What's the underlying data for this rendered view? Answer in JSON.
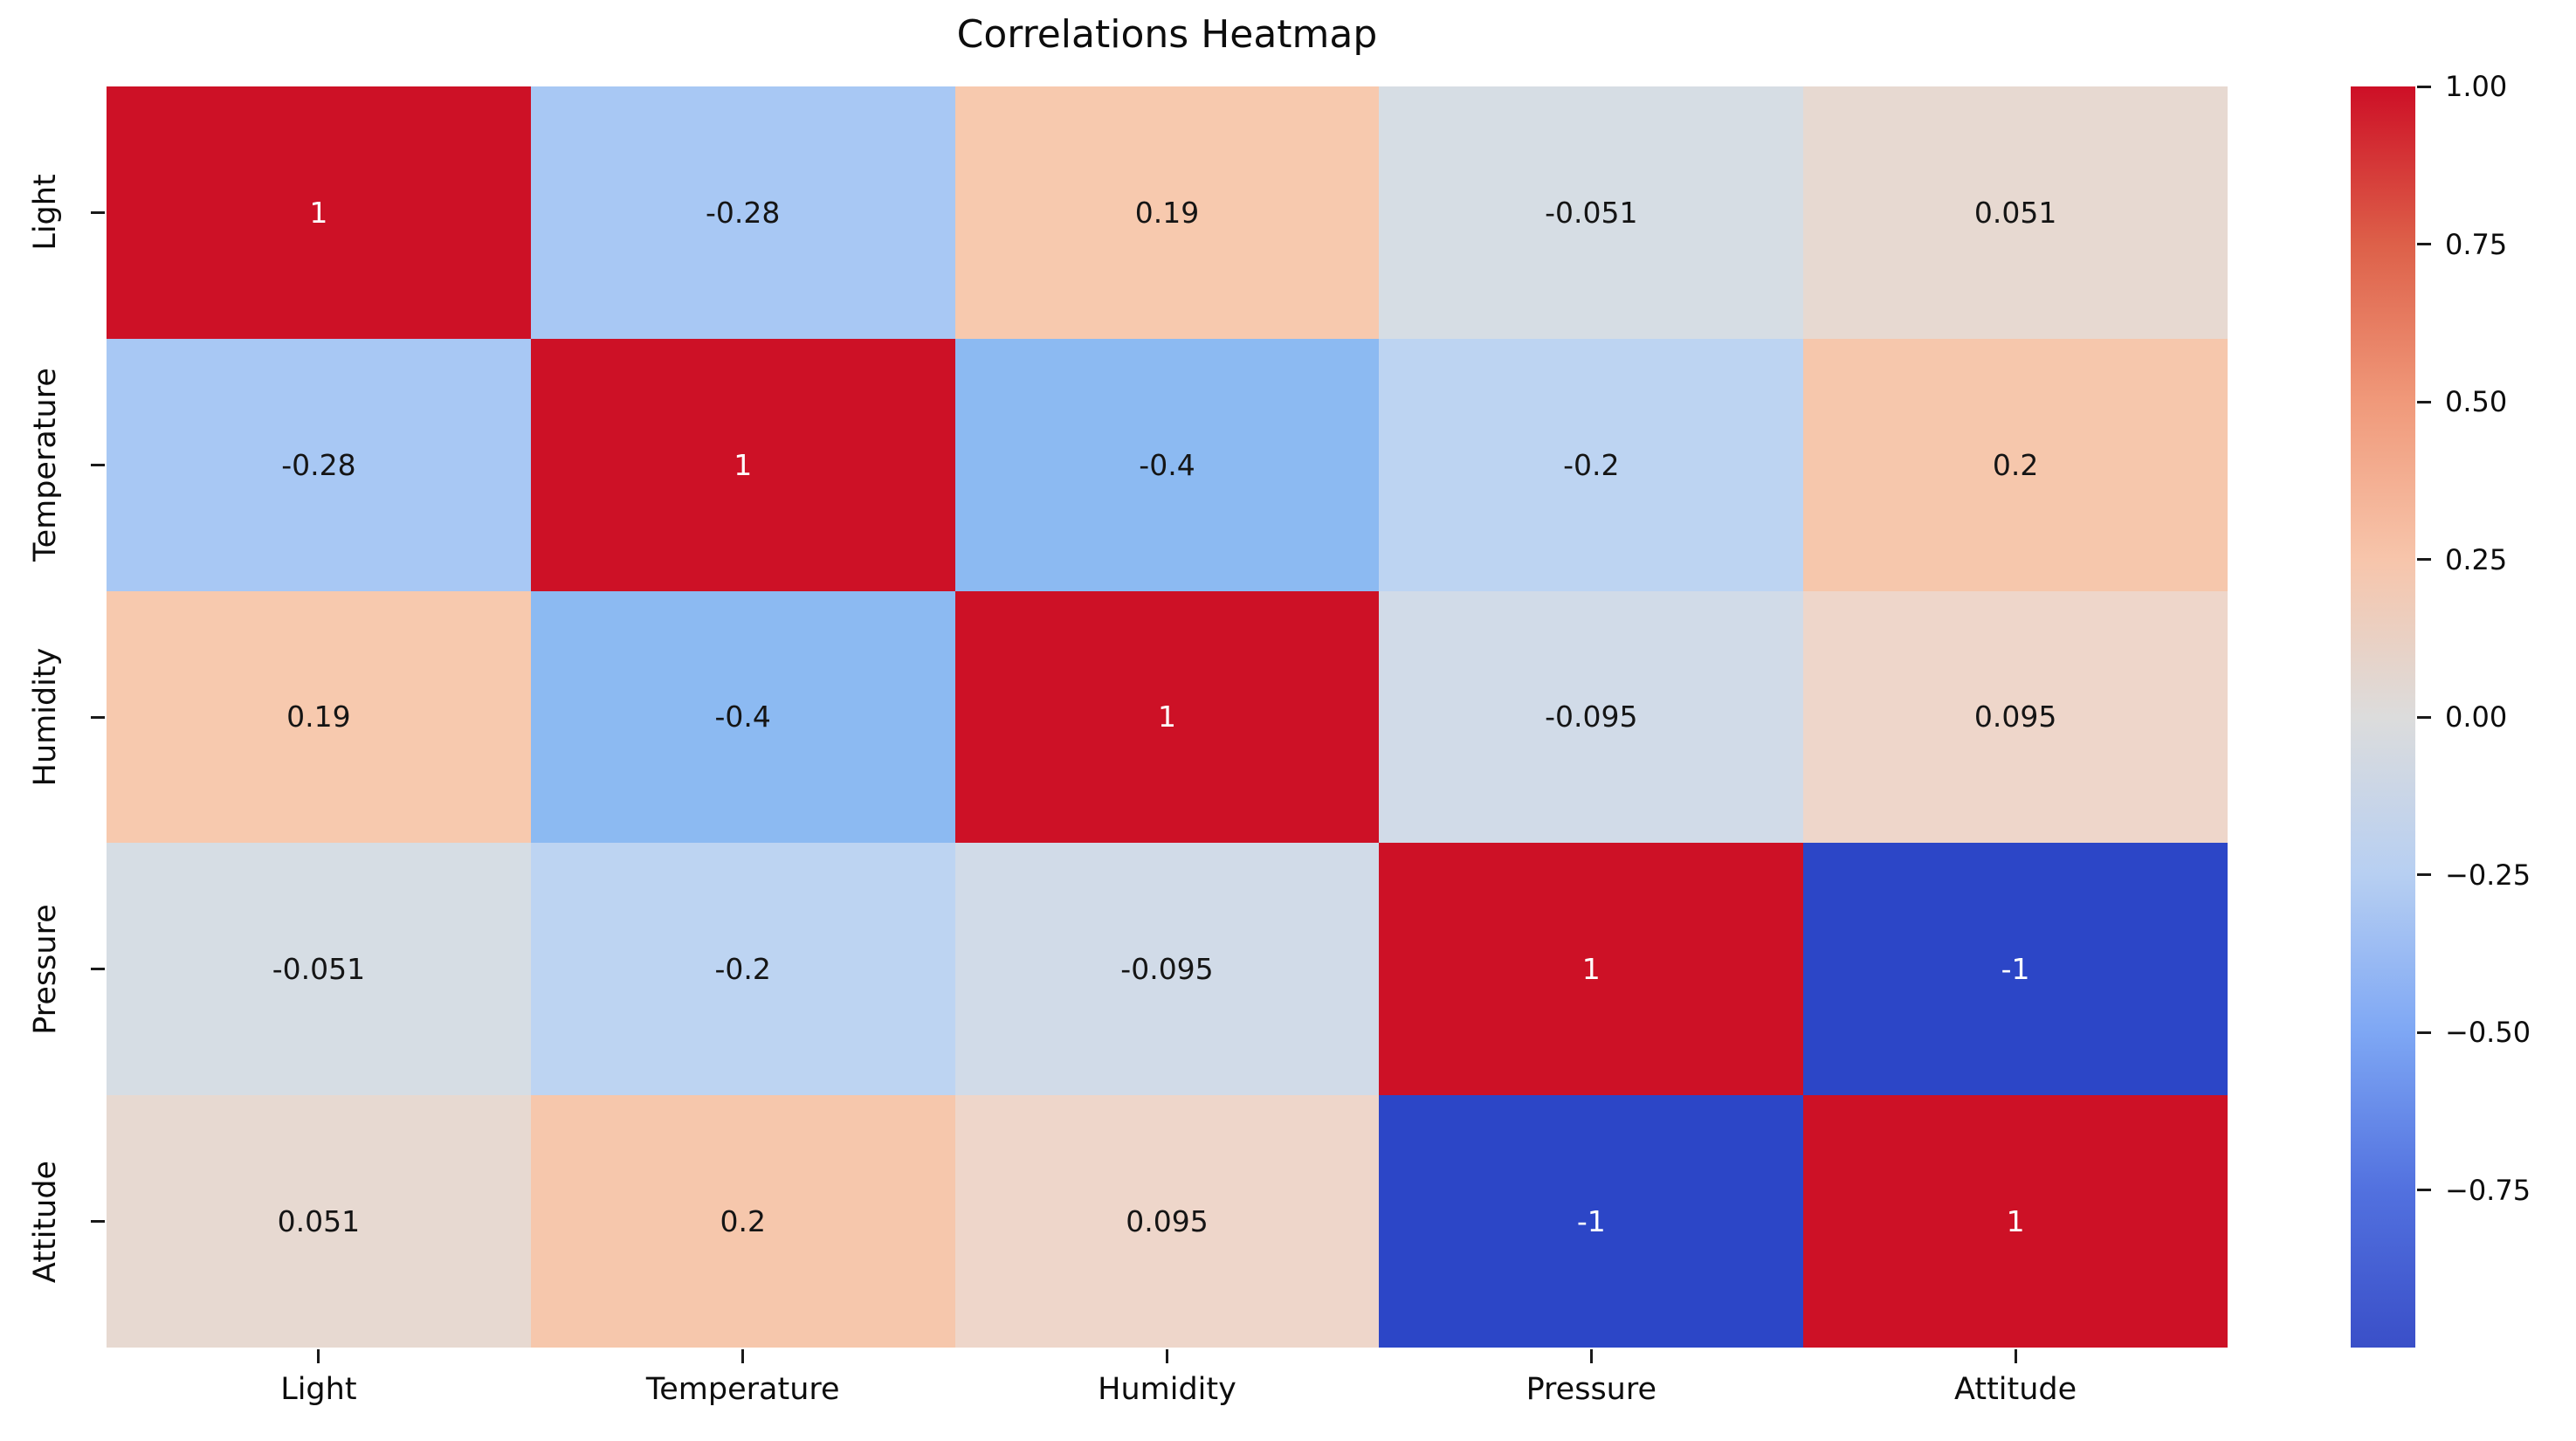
{
  "title": "Correlations Heatmap",
  "chart_data": {
    "type": "heatmap",
    "x_categories": [
      "Light",
      "Temperature",
      "Humidity",
      "Pressure",
      "Attitude"
    ],
    "y_categories": [
      "Light",
      "Temperature",
      "Humidity",
      "Pressure",
      "Attitude"
    ],
    "matrix": [
      [
        1,
        -0.28,
        0.19,
        -0.051,
        0.051
      ],
      [
        -0.28,
        1,
        -0.4,
        -0.2,
        0.2
      ],
      [
        0.19,
        -0.4,
        1,
        -0.095,
        0.095
      ],
      [
        -0.051,
        -0.2,
        -0.095,
        1,
        -1
      ],
      [
        0.051,
        0.2,
        0.095,
        -1,
        1
      ]
    ],
    "cell_labels": [
      [
        "1",
        "-0.28",
        "0.19",
        "-0.051",
        "0.051"
      ],
      [
        "-0.28",
        "1",
        "-0.4",
        "-0.2",
        "0.2"
      ],
      [
        "0.19",
        "-0.4",
        "1",
        "-0.095",
        "0.095"
      ],
      [
        "-0.051",
        "-0.2",
        "-0.095",
        "1",
        "-1"
      ],
      [
        "0.051",
        "0.2",
        "0.095",
        "-1",
        "1"
      ]
    ],
    "title": "Correlations Heatmap",
    "xlabel": "",
    "ylabel": "",
    "vmin": -1,
    "vmax": 1,
    "colormap": "coolwarm",
    "colorbar_position": "right",
    "colorbar_ticks": [
      "1.00",
      "0.75",
      "0.50",
      "0.25",
      "0.00",
      "−0.25",
      "−0.50",
      "−0.75"
    ],
    "colorbar_tick_values": [
      1.0,
      0.75,
      0.5,
      0.25,
      0.0,
      -0.25,
      -0.5,
      -0.75
    ],
    "grid": "off"
  },
  "colors": {
    "background": "#ffffff",
    "text": "#0d0d0d",
    "annotation_dark": "#151515",
    "annotation_light": "#ffffff",
    "palette": {
      "1": {
        "bg": "#cd1126",
        "fg": "#ffffff"
      },
      "-1": {
        "bg": "#2c46c7",
        "fg": "#ffffff"
      },
      "-0.4": {
        "bg": "#8cbaf2",
        "fg": "#151515"
      },
      "-0.28": {
        "bg": "#a8c8f4",
        "fg": "#151515"
      },
      "-0.2": {
        "bg": "#bdd4f2",
        "fg": "#151515"
      },
      "0.2": {
        "bg": "#f6c7ac",
        "fg": "#151515"
      },
      "0.19": {
        "bg": "#f7c9ae",
        "fg": "#151515"
      },
      "0.095": {
        "bg": "#eed6ca",
        "fg": "#151515"
      },
      "-0.095": {
        "bg": "#d1dbe8",
        "fg": "#151515"
      },
      "0.051": {
        "bg": "#e7d9d1",
        "fg": "#151515"
      },
      "-0.051": {
        "bg": "#d6dde4",
        "fg": "#151515"
      }
    },
    "colorbar_stops": [
      "#cd0f26",
      "#dd6049",
      "#f0997a",
      "#f7c5ab",
      "#dcdcdc",
      "#b7cff2",
      "#7ea7f4",
      "#5271df",
      "#3a4fc8"
    ]
  }
}
